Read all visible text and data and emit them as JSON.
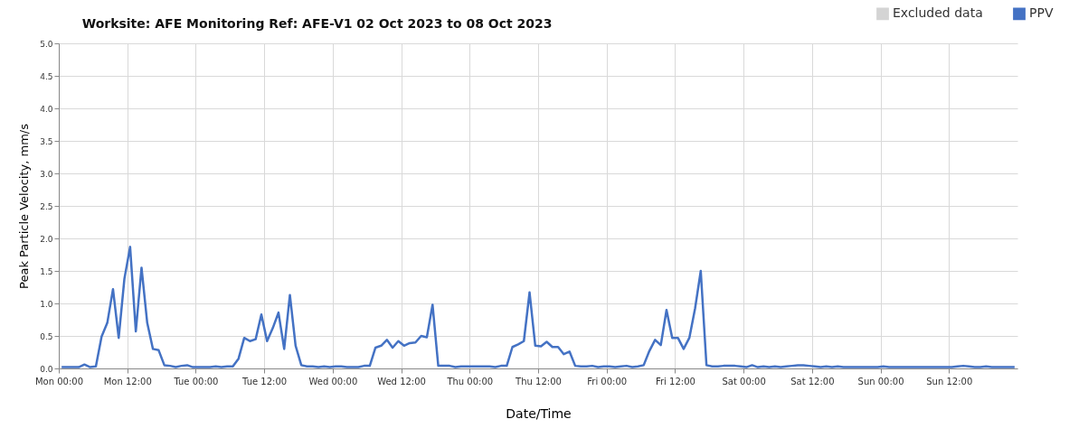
{
  "chart_data": {
    "type": "line",
    "title": "Worksite: AFE    Monitoring Ref: AFE-V1     02 Oct 2023 to 08 Oct 2023",
    "xlabel": "Date/Time",
    "ylabel": "Peak Particle Velocity, mm/s",
    "x": [
      "2023-10-02T00:30",
      "2023-10-02T01:30",
      "2023-10-02T02:30",
      "2023-10-02T03:30",
      "2023-10-02T04:30",
      "2023-10-02T05:30",
      "2023-10-02T06:30",
      "2023-10-02T07:30",
      "2023-10-02T08:30",
      "2023-10-02T09:30",
      "2023-10-02T10:30",
      "2023-10-02T11:30",
      "2023-10-02T12:30",
      "2023-10-02T13:30",
      "2023-10-02T14:30",
      "2023-10-02T15:30",
      "2023-10-02T16:30",
      "2023-10-02T17:30",
      "2023-10-02T18:30",
      "2023-10-02T19:30",
      "2023-10-02T20:30",
      "2023-10-02T21:30",
      "2023-10-02T22:30",
      "2023-10-02T23:30",
      "2023-10-03T00:30",
      "2023-10-03T01:30",
      "2023-10-03T02:30",
      "2023-10-03T03:30",
      "2023-10-03T04:30",
      "2023-10-03T05:30",
      "2023-10-03T06:30",
      "2023-10-03T07:30",
      "2023-10-03T08:30",
      "2023-10-03T09:30",
      "2023-10-03T10:30",
      "2023-10-03T11:30",
      "2023-10-03T12:30",
      "2023-10-03T13:30",
      "2023-10-03T14:30",
      "2023-10-03T15:30",
      "2023-10-03T16:30",
      "2023-10-03T17:30",
      "2023-10-03T18:30",
      "2023-10-03T19:30",
      "2023-10-03T20:30",
      "2023-10-03T21:30",
      "2023-10-03T22:30",
      "2023-10-03T23:30",
      "2023-10-04T00:30",
      "2023-10-04T01:30",
      "2023-10-04T02:30",
      "2023-10-04T03:30",
      "2023-10-04T04:30",
      "2023-10-04T05:30",
      "2023-10-04T06:30",
      "2023-10-04T07:30",
      "2023-10-04T08:30",
      "2023-10-04T09:30",
      "2023-10-04T10:30",
      "2023-10-04T11:30",
      "2023-10-04T12:30",
      "2023-10-04T13:30",
      "2023-10-04T14:30",
      "2023-10-04T15:30",
      "2023-10-04T16:30",
      "2023-10-04T17:30",
      "2023-10-04T18:30",
      "2023-10-04T19:30",
      "2023-10-04T20:30",
      "2023-10-04T21:30",
      "2023-10-04T22:30",
      "2023-10-04T23:30",
      "2023-10-05T00:30",
      "2023-10-05T01:30",
      "2023-10-05T02:30",
      "2023-10-05T03:30",
      "2023-10-05T04:30",
      "2023-10-05T05:30",
      "2023-10-05T06:30",
      "2023-10-05T07:30",
      "2023-10-05T08:30",
      "2023-10-05T09:30",
      "2023-10-05T10:30",
      "2023-10-05T11:30",
      "2023-10-05T12:30",
      "2023-10-05T13:30",
      "2023-10-05T14:30",
      "2023-10-05T15:30",
      "2023-10-05T16:30",
      "2023-10-05T17:30",
      "2023-10-05T18:30",
      "2023-10-05T19:30",
      "2023-10-05T20:30",
      "2023-10-05T21:30",
      "2023-10-05T22:30",
      "2023-10-05T23:30",
      "2023-10-06T00:30",
      "2023-10-06T01:30",
      "2023-10-06T02:30",
      "2023-10-06T03:30",
      "2023-10-06T04:30",
      "2023-10-06T05:30",
      "2023-10-06T06:30",
      "2023-10-06T07:30",
      "2023-10-06T08:30",
      "2023-10-06T09:30",
      "2023-10-06T10:30",
      "2023-10-06T11:30",
      "2023-10-06T12:30",
      "2023-10-06T13:30",
      "2023-10-06T14:30",
      "2023-10-06T15:30",
      "2023-10-06T16:30",
      "2023-10-06T17:30",
      "2023-10-06T18:30",
      "2023-10-06T19:30",
      "2023-10-06T20:30",
      "2023-10-06T21:30",
      "2023-10-06T22:30",
      "2023-10-06T23:30",
      "2023-10-07T00:30",
      "2023-10-07T01:30",
      "2023-10-07T02:30",
      "2023-10-07T03:30",
      "2023-10-07T04:30",
      "2023-10-07T05:30",
      "2023-10-07T06:30",
      "2023-10-07T07:30",
      "2023-10-07T08:30",
      "2023-10-07T09:30",
      "2023-10-07T10:30",
      "2023-10-07T11:30",
      "2023-10-07T12:30",
      "2023-10-07T13:30",
      "2023-10-07T14:30",
      "2023-10-07T15:30",
      "2023-10-07T16:30",
      "2023-10-07T17:30",
      "2023-10-07T18:30",
      "2023-10-07T19:30",
      "2023-10-07T20:30",
      "2023-10-07T21:30",
      "2023-10-07T22:30",
      "2023-10-07T23:30",
      "2023-10-08T00:30",
      "2023-10-08T01:30",
      "2023-10-08T02:30",
      "2023-10-08T03:30",
      "2023-10-08T04:30",
      "2023-10-08T05:30",
      "2023-10-08T06:30",
      "2023-10-08T07:30",
      "2023-10-08T08:30",
      "2023-10-08T09:30",
      "2023-10-08T10:30",
      "2023-10-08T11:30",
      "2023-10-08T12:30",
      "2023-10-08T13:30",
      "2023-10-08T14:30",
      "2023-10-08T15:30",
      "2023-10-08T16:30",
      "2023-10-08T17:30",
      "2023-10-08T18:30",
      "2023-10-08T19:30",
      "2023-10-08T20:30",
      "2023-10-08T21:30",
      "2023-10-08T22:30",
      "2023-10-08T23:30"
    ],
    "series": [
      {
        "name": "Excluded data",
        "type": "area",
        "color": "#d4d4d4",
        "values": [
          null,
          null,
          null,
          null,
          null,
          null,
          null,
          null,
          null,
          null,
          null,
          null,
          null,
          null,
          null,
          null,
          null,
          null,
          null,
          null,
          null,
          null,
          null,
          null,
          null,
          null,
          null,
          null,
          null,
          null,
          null,
          null,
          null,
          null,
          null,
          null,
          null,
          null,
          null,
          null,
          null,
          null,
          null,
          null,
          null,
          null,
          null,
          null,
          null,
          null,
          null,
          null,
          null,
          null,
          null,
          null,
          null,
          null,
          null,
          null,
          null,
          null,
          null,
          null,
          null,
          null,
          null,
          null,
          null,
          null,
          null,
          null,
          null,
          null,
          null,
          null,
          null,
          null,
          null,
          null,
          null,
          null,
          null,
          null,
          null,
          null,
          null,
          null,
          null,
          null,
          null,
          null,
          null,
          null,
          null,
          null,
          null,
          null,
          null,
          null,
          null,
          null,
          null,
          null,
          null,
          null,
          null,
          null,
          null,
          null,
          null,
          null,
          null,
          null,
          null,
          null,
          null,
          null,
          null,
          null,
          null,
          null,
          null,
          null,
          null,
          null,
          null,
          null,
          null,
          null,
          null,
          null,
          null,
          null,
          null,
          null,
          null,
          null,
          null,
          null,
          null,
          null,
          null,
          null,
          null,
          null,
          null,
          null,
          null,
          null,
          null,
          null,
          null,
          null,
          null,
          null,
          null,
          null,
          null,
          null,
          null,
          null,
          null,
          null,
          null,
          null,
          null,
          null
        ]
      },
      {
        "name": "PPV",
        "color": "#4472c4",
        "values": [
          0.02,
          0.02,
          0.02,
          0.02,
          0.06,
          0.02,
          0.03,
          0.49,
          0.7,
          1.22,
          0.47,
          1.38,
          1.87,
          0.57,
          1.55,
          0.7,
          0.3,
          0.28,
          0.05,
          0.04,
          0.02,
          0.04,
          0.05,
          0.02,
          0.02,
          0.02,
          0.02,
          0.03,
          0.02,
          0.03,
          0.03,
          0.15,
          0.47,
          0.42,
          0.45,
          0.83,
          0.42,
          0.62,
          0.86,
          0.3,
          1.13,
          0.35,
          0.05,
          0.03,
          0.03,
          0.02,
          0.03,
          0.02,
          0.03,
          0.03,
          0.02,
          0.02,
          0.02,
          0.04,
          0.04,
          0.32,
          0.35,
          0.44,
          0.32,
          0.42,
          0.35,
          0.39,
          0.4,
          0.5,
          0.48,
          0.98,
          0.04,
          0.04,
          0.04,
          0.02,
          0.03,
          0.03,
          0.03,
          0.03,
          0.03,
          0.03,
          0.02,
          0.04,
          0.04,
          0.33,
          0.37,
          0.42,
          1.17,
          0.35,
          0.34,
          0.41,
          0.33,
          0.33,
          0.22,
          0.26,
          0.04,
          0.03,
          0.03,
          0.04,
          0.02,
          0.03,
          0.03,
          0.02,
          0.03,
          0.04,
          0.02,
          0.03,
          0.05,
          0.27,
          0.44,
          0.36,
          0.9,
          0.47,
          0.47,
          0.3,
          0.47,
          0.92,
          1.5,
          0.05,
          0.03,
          0.03,
          0.04,
          0.04,
          0.04,
          0.03,
          0.02,
          0.05,
          0.02,
          0.03,
          0.02,
          0.03,
          0.02,
          0.03,
          0.04,
          0.05,
          0.05,
          0.04,
          0.03,
          0.02,
          0.03,
          0.02,
          0.03,
          0.02,
          0.02,
          0.02,
          0.02,
          0.02,
          0.02,
          0.02,
          0.03,
          0.02,
          0.02,
          0.02,
          0.02,
          0.02,
          0.02,
          0.02,
          0.02,
          0.02,
          0.02,
          0.02,
          0.02,
          0.03,
          0.04,
          0.03,
          0.02,
          0.02,
          0.03,
          0.02,
          0.02,
          0.02,
          0.02,
          0.02
        ]
      }
    ],
    "xlim": [
      "2023-10-02T00:00",
      "2023-10-09T00:00"
    ],
    "xticks": [
      {
        "value": "2023-10-02T00:00",
        "label": "Mon 00:00"
      },
      {
        "value": "2023-10-02T12:00",
        "label": "Mon 12:00"
      },
      {
        "value": "2023-10-03T00:00",
        "label": "Tue 00:00"
      },
      {
        "value": "2023-10-03T12:00",
        "label": "Tue 12:00"
      },
      {
        "value": "2023-10-04T00:00",
        "label": "Wed 00:00"
      },
      {
        "value": "2023-10-04T12:00",
        "label": "Wed 12:00"
      },
      {
        "value": "2023-10-05T00:00",
        "label": "Thu 00:00"
      },
      {
        "value": "2023-10-05T12:00",
        "label": "Thu 12:00"
      },
      {
        "value": "2023-10-06T00:00",
        "label": "Fri 00:00"
      },
      {
        "value": "2023-10-06T12:00",
        "label": "Fri 12:00"
      },
      {
        "value": "2023-10-07T00:00",
        "label": "Sat 00:00"
      },
      {
        "value": "2023-10-07T12:00",
        "label": "Sat 12:00"
      },
      {
        "value": "2023-10-08T00:00",
        "label": "Sun 00:00"
      },
      {
        "value": "2023-10-08T12:00",
        "label": "Sun 12:00"
      }
    ],
    "ylim": [
      0,
      5
    ],
    "yticks": [
      {
        "value": 0,
        "label": "0.0"
      },
      {
        "value": 0.5,
        "label": "0.5"
      },
      {
        "value": 1,
        "label": "1.0"
      },
      {
        "value": 1.5,
        "label": "1.5"
      },
      {
        "value": 2,
        "label": "2.0"
      },
      {
        "value": 2.5,
        "label": "2.5"
      },
      {
        "value": 3,
        "label": "3.0"
      },
      {
        "value": 3.5,
        "label": "3.5"
      },
      {
        "value": 4,
        "label": "4.0"
      },
      {
        "value": 4.5,
        "label": "4.5"
      },
      {
        "value": 5,
        "label": "5.0"
      }
    ],
    "grid": true,
    "legend": "top right",
    "marker": "none",
    "line_style": "solid"
  }
}
